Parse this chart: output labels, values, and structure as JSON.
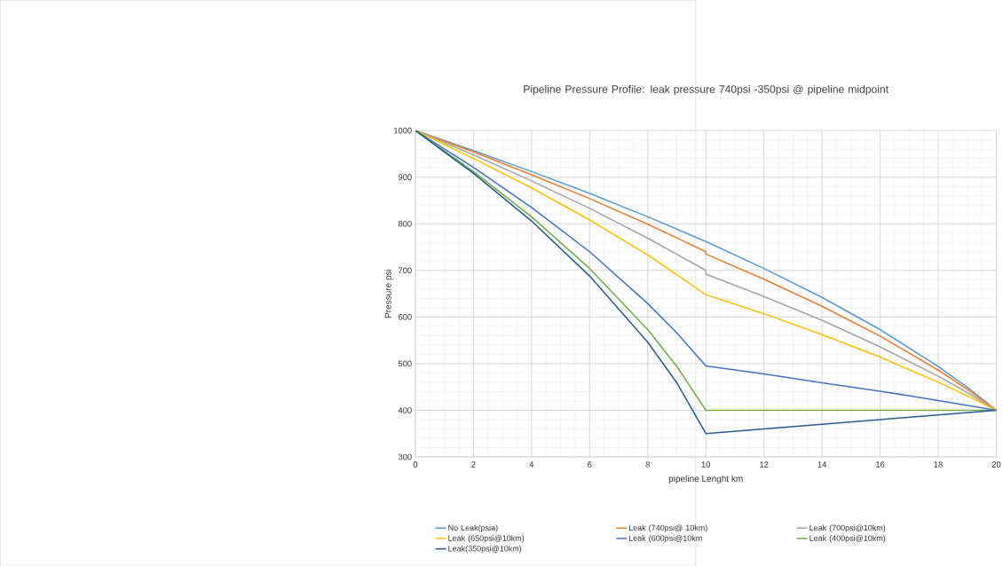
{
  "chart_data": {
    "type": "line",
    "title": "Pipeline Pressure Profile: leak pressure 740psi -350psi @ pipeline midpoint",
    "xlabel": "pipeline Lenght km",
    "ylabel": "Pressure psi",
    "xlim": [
      0,
      20
    ],
    "xticks": [
      0,
      2,
      4,
      6,
      8,
      10,
      12,
      14,
      16,
      18,
      20
    ],
    "ylim": [
      300,
      1000
    ],
    "yticks": [
      300,
      400,
      500,
      600,
      700,
      800,
      900,
      1000
    ],
    "grid": true,
    "legend": "bottom",
    "marker": "none",
    "series": [
      {
        "name": "No Leak(psia)",
        "color": "#5b9bd5",
        "x": [
          0,
          2,
          4,
          6,
          8,
          10,
          12,
          14,
          16,
          18,
          19,
          20
        ],
        "values": [
          1000,
          957,
          912,
          865,
          815,
          762,
          704,
          642,
          573,
          494,
          449,
          400
        ]
      },
      {
        "name": "Leak (740psi@ 10km)",
        "color": "#ed7d31",
        "x": [
          0,
          2,
          4,
          6,
          8,
          10,
          10,
          12,
          14,
          16,
          18,
          19,
          20
        ],
        "values": [
          1000,
          954,
          905,
          854,
          799,
          740,
          735,
          681,
          623,
          559,
          486,
          445,
          400
        ]
      },
      {
        "name": "Leak (700psi@10km)",
        "color": "#a5a5a5",
        "x": [
          0,
          2,
          4,
          6,
          8,
          10,
          10,
          12,
          14,
          16,
          18,
          19,
          20
        ],
        "values": [
          1000,
          948,
          892,
          833,
          769,
          700,
          692,
          644,
          593,
          536,
          473,
          438,
          400
        ]
      },
      {
        "name": "Leak (650psi@10km)",
        "color": "#ffc000",
        "x": [
          0,
          2,
          4,
          6,
          8,
          10,
          12,
          14,
          16,
          18,
          19,
          20
        ],
        "values": [
          1000,
          940,
          877,
          808,
          733,
          648,
          607,
          562,
          514,
          460,
          431,
          400
        ]
      },
      {
        "name": "Leak (600psi@10km",
        "color": "#4472c4",
        "x": [
          0,
          2,
          4,
          6,
          8,
          9,
          10,
          12,
          14,
          16,
          18,
          20
        ],
        "values": [
          1000,
          921,
          835,
          740,
          629,
          566,
          495,
          478,
          459,
          441,
          421,
          400
        ]
      },
      {
        "name": "Leak (400psi@10km)",
        "color": "#70ad47",
        "x": [
          0,
          2,
          4,
          6,
          8,
          9,
          10,
          20
        ],
        "values": [
          1000,
          912,
          815,
          704,
          573,
          494,
          400,
          400
        ]
      },
      {
        "name": "Leak(350psi@10km)",
        "color": "#255e91",
        "x": [
          0,
          2,
          4,
          6,
          8,
          9,
          10,
          12,
          14,
          16,
          18,
          20
        ],
        "values": [
          1000,
          908,
          806,
          688,
          546,
          459,
          350,
          360,
          370,
          380,
          390,
          400
        ]
      }
    ]
  }
}
